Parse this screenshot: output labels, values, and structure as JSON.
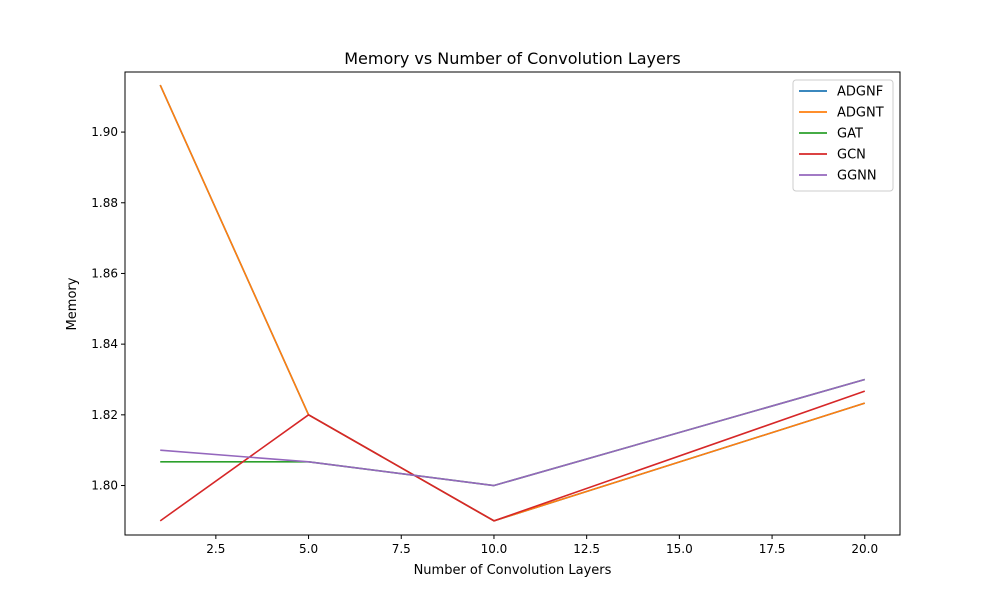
{
  "chart_data": {
    "type": "line",
    "title": "Memory vs Number of Convolution Layers",
    "xlabel": "Number of Convolution Layers",
    "ylabel": "Memory",
    "x": [
      1,
      5,
      10,
      20
    ],
    "xlim": [
      0.05,
      20.95
    ],
    "ylim": [
      1.786,
      1.917
    ],
    "xticks": [
      2.5,
      5.0,
      7.5,
      10.0,
      12.5,
      15.0,
      17.5,
      20.0
    ],
    "xtick_labels": [
      "2.5",
      "5.0",
      "7.5",
      "10.0",
      "12.5",
      "15.0",
      "17.5",
      "20.0"
    ],
    "yticks": [
      1.8,
      1.82,
      1.84,
      1.86,
      1.88,
      1.9
    ],
    "ytick_labels": [
      "1.80",
      "1.82",
      "1.84",
      "1.86",
      "1.88",
      "1.90"
    ],
    "grid": false,
    "legend_position": "top-right",
    "series": [
      {
        "name": "ADGNF",
        "color": "#1f77b4",
        "values": [
          1.9133,
          1.82,
          1.79,
          1.8233
        ]
      },
      {
        "name": "ADGNT",
        "color": "#ff7f0e",
        "values": [
          1.9133,
          1.82,
          1.79,
          1.8233
        ]
      },
      {
        "name": "GAT",
        "color": "#2ca02c",
        "values": [
          1.8067,
          1.8067,
          1.8,
          1.83
        ]
      },
      {
        "name": "GCN",
        "color": "#d62728",
        "values": [
          1.79,
          1.82,
          1.79,
          1.8267
        ]
      },
      {
        "name": "GGNN",
        "color": "#9467bd",
        "values": [
          1.81,
          1.8067,
          1.8,
          1.83
        ]
      }
    ]
  }
}
